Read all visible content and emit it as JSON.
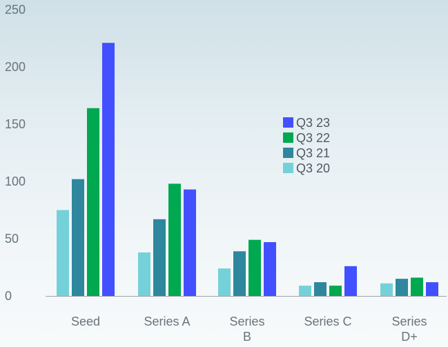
{
  "chart_data": {
    "type": "bar",
    "title": "",
    "xlabel": "",
    "ylabel": "",
    "ylim": [
      0,
      250
    ],
    "yticks": [
      0,
      50,
      100,
      150,
      200,
      250
    ],
    "grid": false,
    "legend_position": "right-center",
    "categories": [
      [
        "Seed"
      ],
      [
        "Series A"
      ],
      [
        "Series",
        "B"
      ],
      [
        "Series C"
      ],
      [
        "Series",
        "D+"
      ]
    ],
    "series": [
      {
        "name": "Q3 20",
        "color": "#75d1d9",
        "values": [
          75,
          38,
          24,
          9,
          11
        ]
      },
      {
        "name": "Q3 21",
        "color": "#2e879d",
        "values": [
          102,
          67,
          39,
          12,
          15
        ]
      },
      {
        "name": "Q3 22",
        "color": "#00a84f",
        "values": [
          164,
          98,
          49,
          9,
          16
        ]
      },
      {
        "name": "Q3 23",
        "color": "#4350ff",
        "values": [
          221,
          93,
          47,
          26,
          12
        ]
      }
    ],
    "legend_order": [
      "Q3 23",
      "Q3 22",
      "Q3 21",
      "Q3 20"
    ]
  }
}
